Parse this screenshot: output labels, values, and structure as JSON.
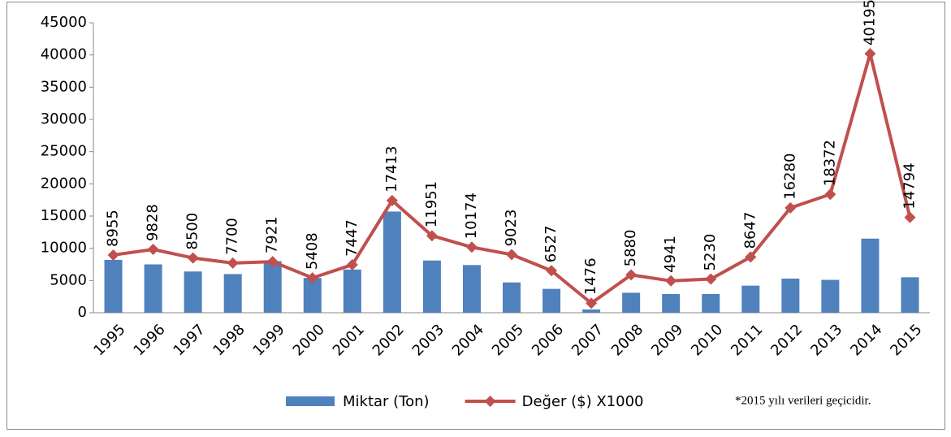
{
  "chart_data": {
    "type": "combo",
    "categories": [
      "1995",
      "1996",
      "1997",
      "1998",
      "1999",
      "2000",
      "2001",
      "2002",
      "2003",
      "2004",
      "2005",
      "2006",
      "2007",
      "2008",
      "2009",
      "2010",
      "2011",
      "2012",
      "2013",
      "2014",
      "2015"
    ],
    "series": [
      {
        "name": "Miktar (Ton)",
        "type": "bar",
        "color": "#4f81bd",
        "values": [
          8200,
          7500,
          6400,
          6000,
          8000,
          5400,
          6700,
          15700,
          8100,
          7400,
          4700,
          3700,
          500,
          3100,
          2900,
          2900,
          4200,
          5300,
          5100,
          11500,
          5500
        ]
      },
      {
        "name": "Değer ($) X1000",
        "type": "line",
        "color": "#c0504d",
        "values": [
          8955,
          9828,
          8500,
          7700,
          7921,
          5408,
          7447,
          17413,
          11951,
          10174,
          9023,
          6527,
          1476,
          5880,
          4941,
          5230,
          8647,
          16280,
          18372,
          40195,
          14794
        ]
      }
    ],
    "ylim": [
      0,
      45000
    ],
    "yticks": [
      0,
      5000,
      10000,
      15000,
      20000,
      25000,
      30000,
      35000,
      40000,
      45000
    ],
    "grid": false,
    "legend": "bottom",
    "note": "*2015 yılı verileri geçicidir."
  }
}
